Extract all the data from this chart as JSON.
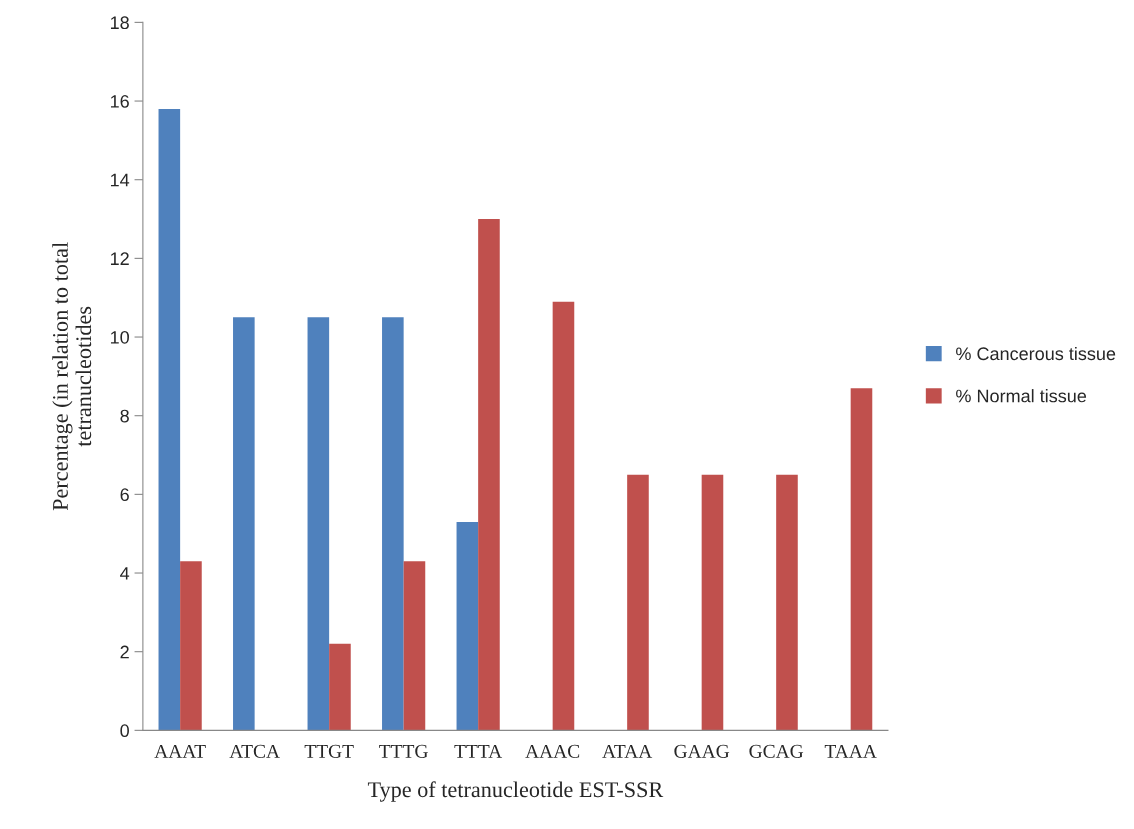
{
  "chart_data": {
    "type": "bar",
    "xlabel": "Type of tetranucleotide EST-SSR",
    "ylabel": "Percentage (in relation to total\ntetranucleotides",
    "categories": [
      "AAAT",
      "ATCA",
      "TTGT",
      "TTTG",
      "TTTA",
      "AAAC",
      "ATAA",
      "GAAG",
      "GCAG",
      "TAAA"
    ],
    "series": [
      {
        "name": "% Cancerous tissue",
        "color": "#4f81bd",
        "values": [
          15.8,
          10.5,
          10.5,
          10.5,
          5.3,
          null,
          null,
          null,
          null,
          null
        ]
      },
      {
        "name": "% Normal tissue",
        "color": "#c0504d",
        "values": [
          4.3,
          null,
          2.2,
          4.3,
          13.0,
          10.9,
          6.5,
          6.5,
          6.5,
          8.7
        ]
      }
    ],
    "ylim": [
      0,
      18
    ],
    "yticks": [
      0,
      2,
      4,
      6,
      8,
      10,
      12,
      14,
      16,
      18
    ],
    "grid": false,
    "legend": "right"
  }
}
